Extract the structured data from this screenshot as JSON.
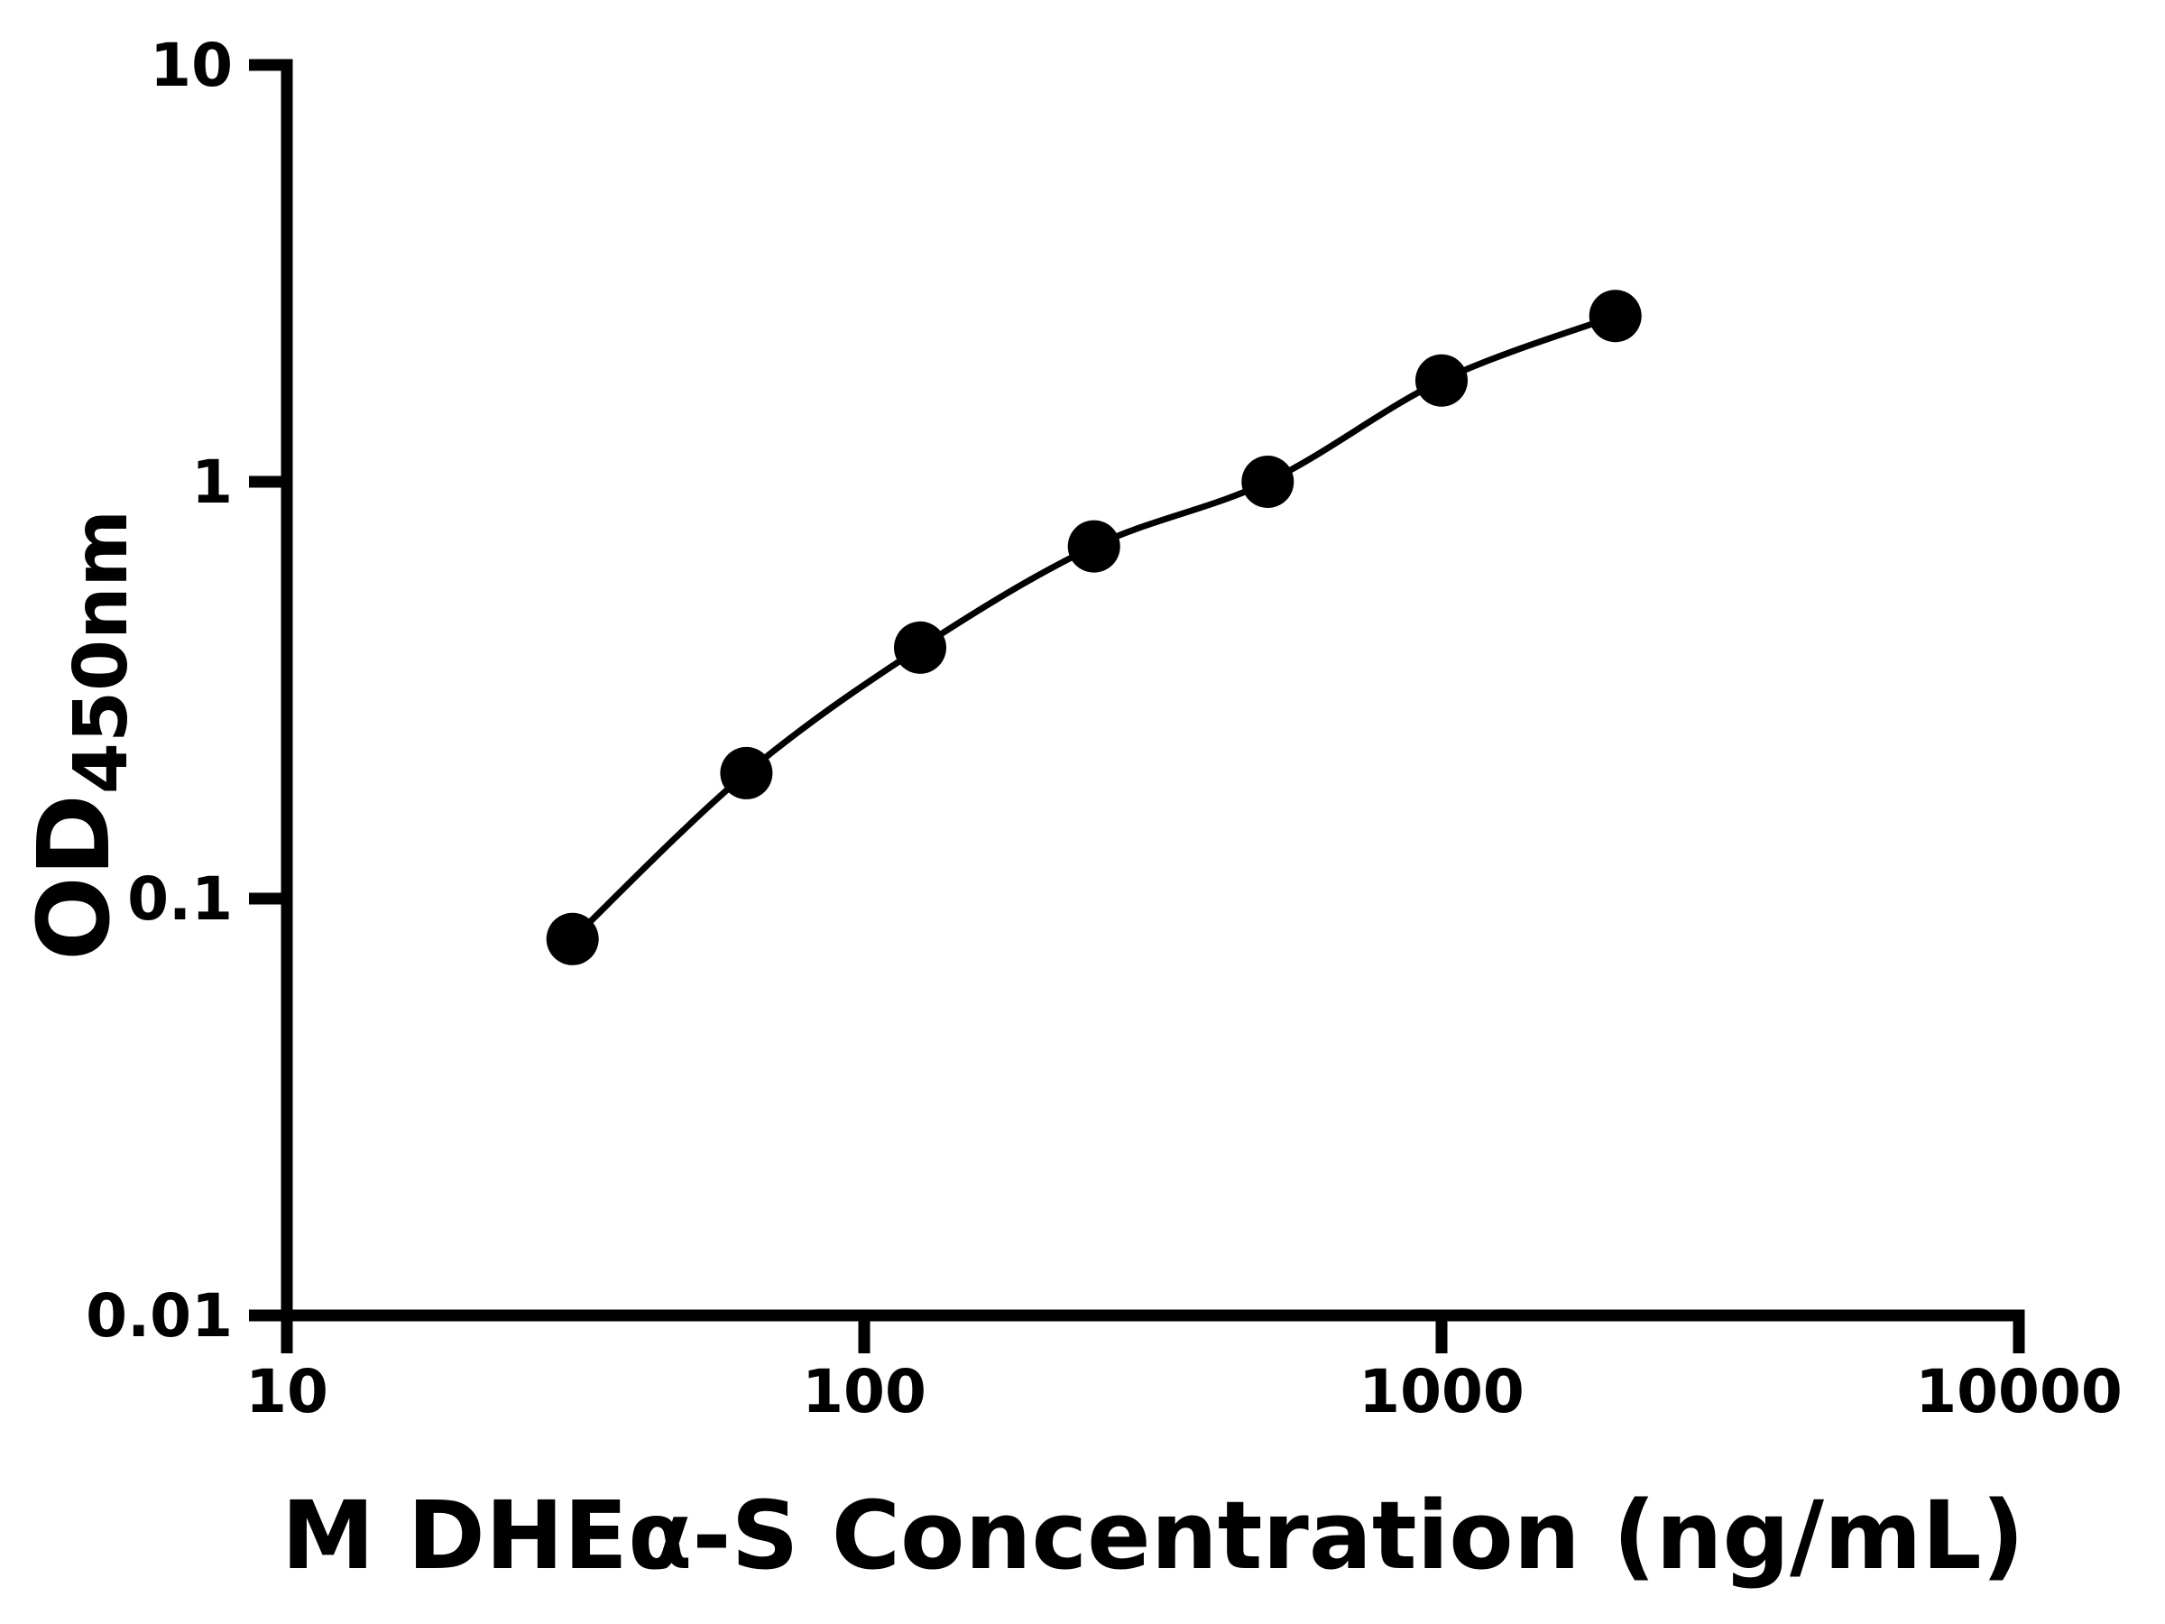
{
  "figure": {
    "background_color": "#ffffff",
    "foreground_color": "#000000"
  },
  "chart_data": {
    "type": "scatter",
    "line_through_points": true,
    "line_style": "smooth",
    "title": "",
    "xlabel": "M DHEα-S Concentration (ng/mL)",
    "ylabel_main": "OD",
    "ylabel_sub": "450nm",
    "x_scale": "log",
    "y_scale": "log",
    "xlim": [
      10,
      10000
    ],
    "ylim": [
      0.01,
      10
    ],
    "x_ticks": [
      10,
      100,
      1000,
      10000
    ],
    "x_tick_labels": [
      "10",
      "100",
      "1000",
      "10000"
    ],
    "y_ticks": [
      0.01,
      0.1,
      1,
      10
    ],
    "y_tick_labels": [
      "0.01",
      "0.1",
      "1",
      "10"
    ],
    "grid": false,
    "legend": null,
    "marker": "filled-circle",
    "marker_color": "#000000",
    "line_color": "#000000",
    "x": [
      31.25,
      62.5,
      125,
      250,
      500,
      1000,
      2000
    ],
    "y": [
      0.08,
      0.2,
      0.4,
      0.7,
      1.0,
      1.75,
      2.5
    ]
  }
}
